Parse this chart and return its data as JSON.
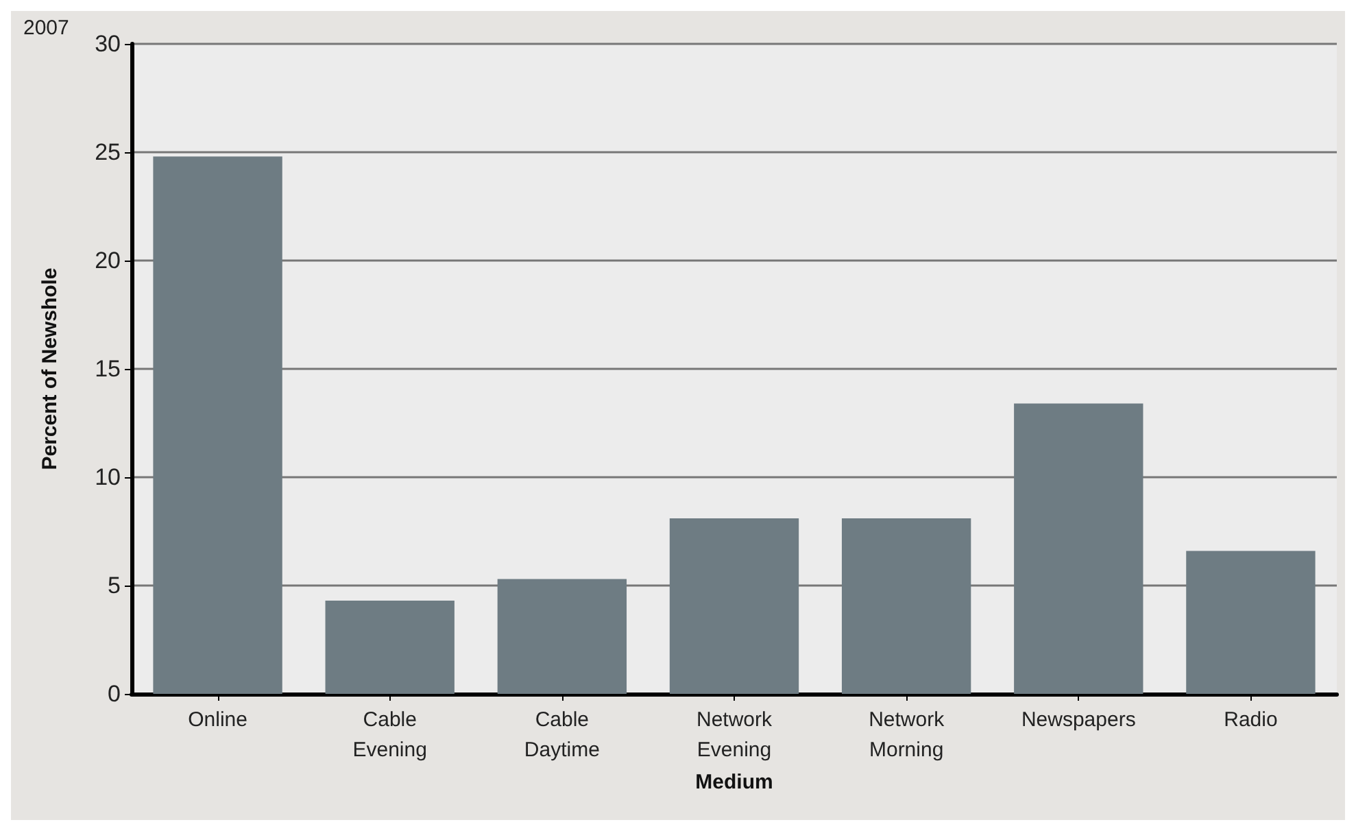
{
  "chart_data": {
    "type": "bar",
    "title": "2007",
    "xlabel": "Medium",
    "ylabel": "Percent of Newshole",
    "categories": [
      "Online",
      "Cable Evening",
      "Cable Daytime",
      "Network Evening",
      "Network Morning",
      "Newspapers",
      "Radio"
    ],
    "values": [
      24.8,
      4.3,
      5.3,
      8.1,
      8.1,
      13.4,
      6.6
    ],
    "color": "#6e7c83",
    "ylim": [
      0,
      30
    ],
    "yticks": [
      0,
      5,
      10,
      15,
      20,
      25,
      30
    ],
    "grid": "y"
  }
}
